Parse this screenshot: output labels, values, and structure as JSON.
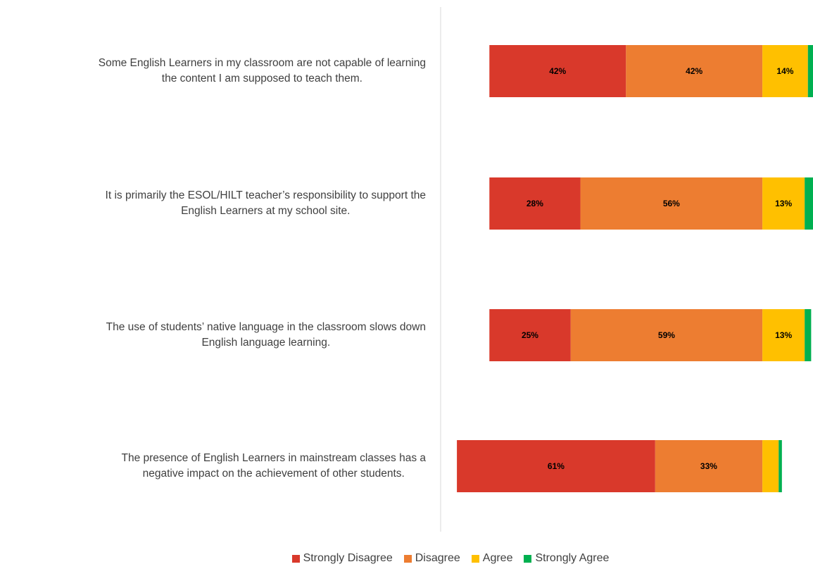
{
  "chart_data": {
    "type": "diverging_bar",
    "categories": [
      [
        "Some English Learners in my classroom are not capable of learning",
        "the content I am supposed to teach them."
      ],
      [
        "It is primarily the ESOL/HILT teacher’s responsibility to support  the",
        "English Learners at my school site."
      ],
      [
        "The use of students’ native language in the classroom slows down",
        "English language learning."
      ],
      [
        "The presence of English Learners in mainstream classes has a",
        "negative impact on the achievement of other students."
      ]
    ],
    "series": [
      {
        "name": "Strongly Disagree",
        "color": "#d9392b",
        "values": [
          42,
          28,
          25,
          61
        ],
        "value_labels": [
          "42%",
          "28%",
          "25%",
          "61%"
        ]
      },
      {
        "name": "Disagree",
        "color": "#ed7d31",
        "values": [
          42,
          56,
          59,
          33
        ],
        "value_labels": [
          "42%",
          "56%",
          "59%",
          "33%"
        ]
      },
      {
        "name": "Agree",
        "color": "#ffc000",
        "values": [
          14,
          13,
          13,
          5
        ],
        "value_labels": [
          "14%",
          "13%",
          "13%",
          null
        ]
      },
      {
        "name": "Strongly Agree",
        "color": "#00b050",
        "values": [
          2,
          3,
          2,
          1
        ],
        "value_labels": [
          null,
          null,
          null,
          null
        ]
      }
    ],
    "xlim": [
      -99,
      16
    ]
  }
}
